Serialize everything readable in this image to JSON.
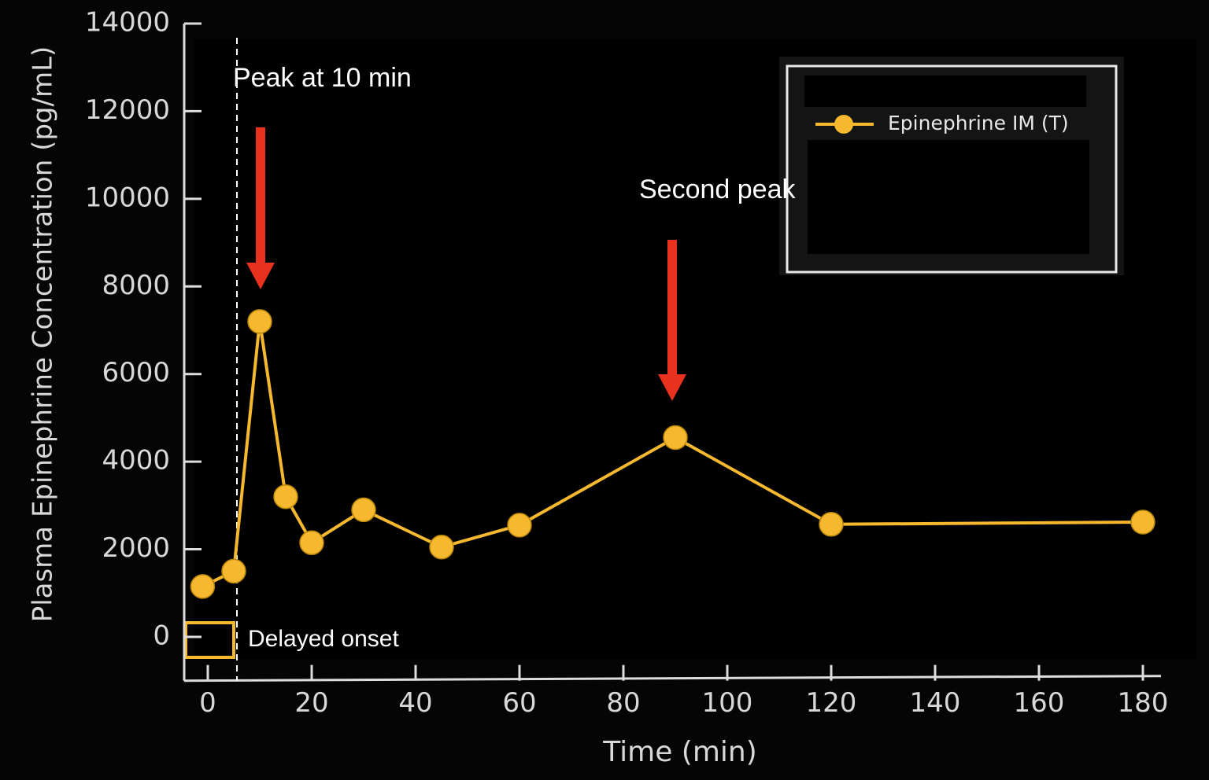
{
  "chart_data": {
    "type": "line",
    "x_label": "Time (min)",
    "y_label": "Plasma Epinephrine Concentration (pg/mL)",
    "x": [
      -1,
      5,
      10,
      15,
      20,
      30,
      45,
      60,
      90,
      120,
      180
    ],
    "series": [
      {
        "name": "Epinephrine IM (T)",
        "color": "#f5b82e",
        "values": [
          1150,
          1500,
          7200,
          3200,
          2150,
          2900,
          2050,
          2550,
          4550,
          2570,
          2620
        ]
      }
    ],
    "xlim": [
      -5,
      185
    ],
    "xticks": [
      0,
      20,
      40,
      60,
      80,
      100,
      120,
      140,
      160,
      180
    ],
    "ylim": [
      -1000,
      14000
    ],
    "yticks": [
      0,
      2000,
      4000,
      6000,
      8000,
      10000,
      12000,
      14000
    ],
    "legend": "upper right",
    "annotations": [
      "Peak at 10 min",
      "Second peak",
      "Delayed onset"
    ]
  }
}
